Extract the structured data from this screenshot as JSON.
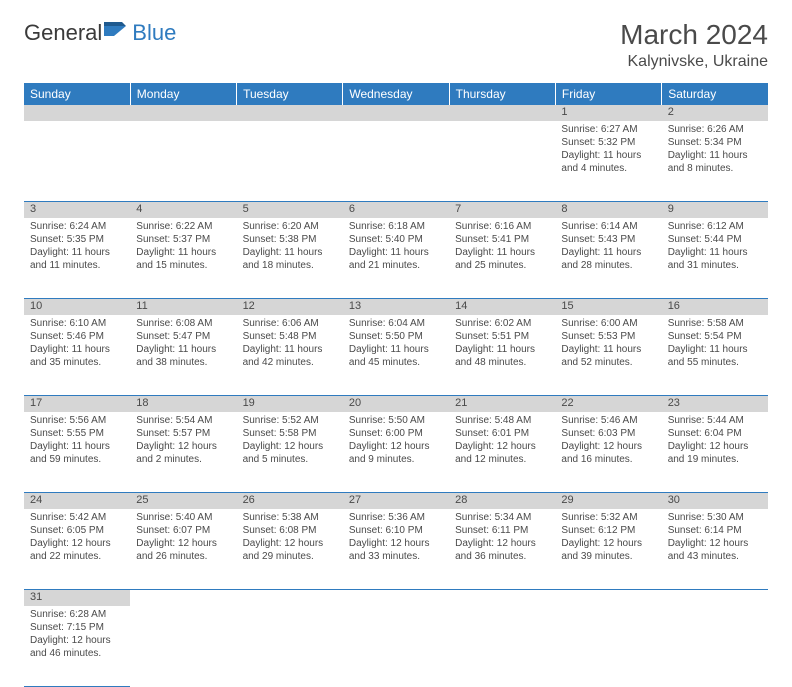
{
  "logo": {
    "text1": "General",
    "text2": "Blue"
  },
  "title": "March 2024",
  "location": "Kalynivske, Ukraine",
  "header_bg": "#2f7bbf",
  "daynum_bg": "#d6d6d6",
  "days": [
    "Sunday",
    "Monday",
    "Tuesday",
    "Wednesday",
    "Thursday",
    "Friday",
    "Saturday"
  ],
  "weeks": [
    [
      null,
      null,
      null,
      null,
      null,
      {
        "n": "1",
        "sr": "Sunrise: 6:27 AM",
        "ss": "Sunset: 5:32 PM",
        "dl1": "Daylight: 11 hours",
        "dl2": "and 4 minutes."
      },
      {
        "n": "2",
        "sr": "Sunrise: 6:26 AM",
        "ss": "Sunset: 5:34 PM",
        "dl1": "Daylight: 11 hours",
        "dl2": "and 8 minutes."
      }
    ],
    [
      {
        "n": "3",
        "sr": "Sunrise: 6:24 AM",
        "ss": "Sunset: 5:35 PM",
        "dl1": "Daylight: 11 hours",
        "dl2": "and 11 minutes."
      },
      {
        "n": "4",
        "sr": "Sunrise: 6:22 AM",
        "ss": "Sunset: 5:37 PM",
        "dl1": "Daylight: 11 hours",
        "dl2": "and 15 minutes."
      },
      {
        "n": "5",
        "sr": "Sunrise: 6:20 AM",
        "ss": "Sunset: 5:38 PM",
        "dl1": "Daylight: 11 hours",
        "dl2": "and 18 minutes."
      },
      {
        "n": "6",
        "sr": "Sunrise: 6:18 AM",
        "ss": "Sunset: 5:40 PM",
        "dl1": "Daylight: 11 hours",
        "dl2": "and 21 minutes."
      },
      {
        "n": "7",
        "sr": "Sunrise: 6:16 AM",
        "ss": "Sunset: 5:41 PM",
        "dl1": "Daylight: 11 hours",
        "dl2": "and 25 minutes."
      },
      {
        "n": "8",
        "sr": "Sunrise: 6:14 AM",
        "ss": "Sunset: 5:43 PM",
        "dl1": "Daylight: 11 hours",
        "dl2": "and 28 minutes."
      },
      {
        "n": "9",
        "sr": "Sunrise: 6:12 AM",
        "ss": "Sunset: 5:44 PM",
        "dl1": "Daylight: 11 hours",
        "dl2": "and 31 minutes."
      }
    ],
    [
      {
        "n": "10",
        "sr": "Sunrise: 6:10 AM",
        "ss": "Sunset: 5:46 PM",
        "dl1": "Daylight: 11 hours",
        "dl2": "and 35 minutes."
      },
      {
        "n": "11",
        "sr": "Sunrise: 6:08 AM",
        "ss": "Sunset: 5:47 PM",
        "dl1": "Daylight: 11 hours",
        "dl2": "and 38 minutes."
      },
      {
        "n": "12",
        "sr": "Sunrise: 6:06 AM",
        "ss": "Sunset: 5:48 PM",
        "dl1": "Daylight: 11 hours",
        "dl2": "and 42 minutes."
      },
      {
        "n": "13",
        "sr": "Sunrise: 6:04 AM",
        "ss": "Sunset: 5:50 PM",
        "dl1": "Daylight: 11 hours",
        "dl2": "and 45 minutes."
      },
      {
        "n": "14",
        "sr": "Sunrise: 6:02 AM",
        "ss": "Sunset: 5:51 PM",
        "dl1": "Daylight: 11 hours",
        "dl2": "and 48 minutes."
      },
      {
        "n": "15",
        "sr": "Sunrise: 6:00 AM",
        "ss": "Sunset: 5:53 PM",
        "dl1": "Daylight: 11 hours",
        "dl2": "and 52 minutes."
      },
      {
        "n": "16",
        "sr": "Sunrise: 5:58 AM",
        "ss": "Sunset: 5:54 PM",
        "dl1": "Daylight: 11 hours",
        "dl2": "and 55 minutes."
      }
    ],
    [
      {
        "n": "17",
        "sr": "Sunrise: 5:56 AM",
        "ss": "Sunset: 5:55 PM",
        "dl1": "Daylight: 11 hours",
        "dl2": "and 59 minutes."
      },
      {
        "n": "18",
        "sr": "Sunrise: 5:54 AM",
        "ss": "Sunset: 5:57 PM",
        "dl1": "Daylight: 12 hours",
        "dl2": "and 2 minutes."
      },
      {
        "n": "19",
        "sr": "Sunrise: 5:52 AM",
        "ss": "Sunset: 5:58 PM",
        "dl1": "Daylight: 12 hours",
        "dl2": "and 5 minutes."
      },
      {
        "n": "20",
        "sr": "Sunrise: 5:50 AM",
        "ss": "Sunset: 6:00 PM",
        "dl1": "Daylight: 12 hours",
        "dl2": "and 9 minutes."
      },
      {
        "n": "21",
        "sr": "Sunrise: 5:48 AM",
        "ss": "Sunset: 6:01 PM",
        "dl1": "Daylight: 12 hours",
        "dl2": "and 12 minutes."
      },
      {
        "n": "22",
        "sr": "Sunrise: 5:46 AM",
        "ss": "Sunset: 6:03 PM",
        "dl1": "Daylight: 12 hours",
        "dl2": "and 16 minutes."
      },
      {
        "n": "23",
        "sr": "Sunrise: 5:44 AM",
        "ss": "Sunset: 6:04 PM",
        "dl1": "Daylight: 12 hours",
        "dl2": "and 19 minutes."
      }
    ],
    [
      {
        "n": "24",
        "sr": "Sunrise: 5:42 AM",
        "ss": "Sunset: 6:05 PM",
        "dl1": "Daylight: 12 hours",
        "dl2": "and 22 minutes."
      },
      {
        "n": "25",
        "sr": "Sunrise: 5:40 AM",
        "ss": "Sunset: 6:07 PM",
        "dl1": "Daylight: 12 hours",
        "dl2": "and 26 minutes."
      },
      {
        "n": "26",
        "sr": "Sunrise: 5:38 AM",
        "ss": "Sunset: 6:08 PM",
        "dl1": "Daylight: 12 hours",
        "dl2": "and 29 minutes."
      },
      {
        "n": "27",
        "sr": "Sunrise: 5:36 AM",
        "ss": "Sunset: 6:10 PM",
        "dl1": "Daylight: 12 hours",
        "dl2": "and 33 minutes."
      },
      {
        "n": "28",
        "sr": "Sunrise: 5:34 AM",
        "ss": "Sunset: 6:11 PM",
        "dl1": "Daylight: 12 hours",
        "dl2": "and 36 minutes."
      },
      {
        "n": "29",
        "sr": "Sunrise: 5:32 AM",
        "ss": "Sunset: 6:12 PM",
        "dl1": "Daylight: 12 hours",
        "dl2": "and 39 minutes."
      },
      {
        "n": "30",
        "sr": "Sunrise: 5:30 AM",
        "ss": "Sunset: 6:14 PM",
        "dl1": "Daylight: 12 hours",
        "dl2": "and 43 minutes."
      }
    ],
    [
      {
        "n": "31",
        "sr": "Sunrise: 6:28 AM",
        "ss": "Sunset: 7:15 PM",
        "dl1": "Daylight: 12 hours",
        "dl2": "and 46 minutes."
      },
      null,
      null,
      null,
      null,
      null,
      null
    ]
  ]
}
